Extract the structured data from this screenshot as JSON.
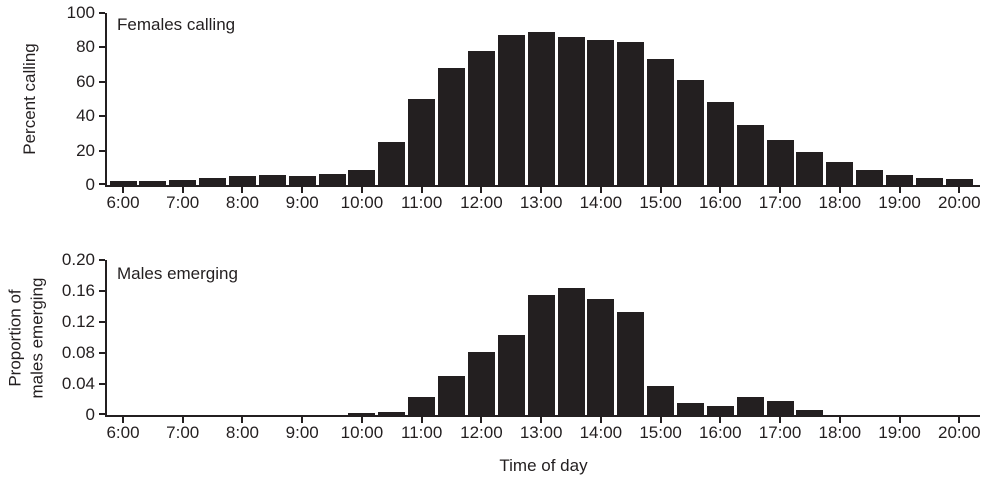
{
  "figure_caption_colors": {
    "ink": "#231f20",
    "background": "#ffffff"
  },
  "chart_data": [
    {
      "type": "bar",
      "title": "Females calling",
      "ylabel": "Percent calling",
      "ylabel_lines": [
        "Percent calling"
      ],
      "xlabel": "",
      "ylim": [
        0,
        100
      ],
      "y_ticks": [
        0,
        20,
        40,
        60,
        80,
        100
      ],
      "y_tick_labels": [
        "0",
        "20",
        "40",
        "60",
        "80",
        "100"
      ],
      "x_tick_labels": [
        "6:00",
        "7:00",
        "8:00",
        "9:00",
        "10:00",
        "11:00",
        "12:00",
        "13:00",
        "14:00",
        "15:00",
        "16:00",
        "17:00",
        "18:00",
        "19:00",
        "20:00"
      ],
      "categories": [
        "6:00",
        "6:30",
        "7:00",
        "7:30",
        "8:00",
        "8:30",
        "9:00",
        "9:30",
        "10:00",
        "10:30",
        "11:00",
        "11:30",
        "12:00",
        "12:30",
        "13:00",
        "13:30",
        "14:00",
        "14:30",
        "15:00",
        "15:30",
        "16:00",
        "16:30",
        "17:00",
        "17:30",
        "18:00",
        "18:30",
        "19:00",
        "19:30",
        "20:00"
      ],
      "values": [
        2.5,
        2.5,
        3,
        4,
        5,
        6,
        5.5,
        6.5,
        9,
        25,
        50,
        68,
        78,
        87,
        89,
        86,
        84.5,
        83,
        73,
        61,
        48,
        35,
        26,
        19,
        13.5,
        8.5,
        6,
        4,
        3.5
      ],
      "bar_color": "#231f20",
      "grid": false,
      "legend": "none"
    },
    {
      "type": "bar",
      "title": "Males emerging",
      "ylabel": "Proportion of males emerging",
      "ylabel_lines": [
        "Proportion of",
        "males emerging"
      ],
      "xlabel": "Time of day",
      "ylim": [
        0,
        0.2
      ],
      "y_ticks": [
        0,
        0.04,
        0.08,
        0.12,
        0.16,
        0.2
      ],
      "y_tick_labels": [
        "0",
        "0.04",
        "0.08",
        "0.12",
        "0.16",
        "0.20"
      ],
      "x_tick_labels": [
        "6:00",
        "7:00",
        "8:00",
        "9:00",
        "10:00",
        "11:00",
        "12:00",
        "13:00",
        "14:00",
        "15:00",
        "16:00",
        "17:00",
        "18:00",
        "19:00",
        "20:00"
      ],
      "categories": [
        "6:00",
        "6:30",
        "7:00",
        "7:30",
        "8:00",
        "8:30",
        "9:00",
        "9:30",
        "10:00",
        "10:30",
        "11:00",
        "11:30",
        "12:00",
        "12:30",
        "13:00",
        "13:30",
        "14:00",
        "14:30",
        "15:00",
        "15:30",
        "16:00",
        "16:30",
        "17:00",
        "17:30",
        "18:00",
        "18:30",
        "19:00",
        "19:30",
        "20:00"
      ],
      "values": [
        0,
        0,
        0,
        0,
        0,
        0,
        0,
        0,
        0.002,
        0.004,
        0.023,
        0.05,
        0.081,
        0.103,
        0.155,
        0.164,
        0.15,
        0.133,
        0.037,
        0.015,
        0.011,
        0.023,
        0.018,
        0.006,
        0,
        0,
        0,
        0,
        0
      ],
      "bar_color": "#231f20",
      "grid": false,
      "legend": "none"
    }
  ]
}
